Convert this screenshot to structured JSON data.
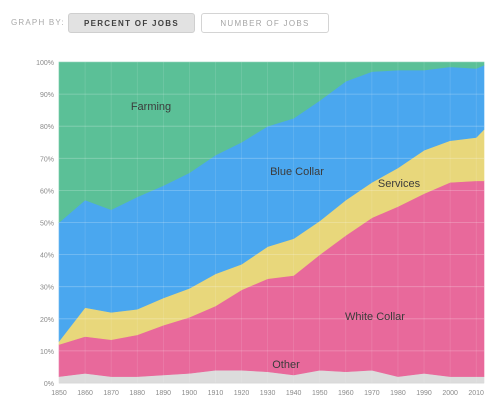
{
  "header": {
    "graph_by_label": "GRAPH BY:",
    "tabs": [
      {
        "label": "PERCENT OF JOBS",
        "active": true
      },
      {
        "label": "NUMBER OF JOBS",
        "active": false
      }
    ]
  },
  "chart_data": {
    "type": "area",
    "stacked": true,
    "x": [
      1850,
      1860,
      1870,
      1880,
      1890,
      1900,
      1910,
      1920,
      1930,
      1940,
      1950,
      1960,
      1970,
      1980,
      1990,
      2000,
      2010,
      2013
    ],
    "x_ticks": [
      "1850",
      "1860",
      "1870",
      "1880",
      "1890",
      "1900",
      "1910",
      "1920",
      "1930",
      "1940",
      "1950",
      "1960",
      "1970",
      "1980",
      "1990",
      "2000",
      "2010"
    ],
    "y_ticks": [
      "0%",
      "10%",
      "20%",
      "30%",
      "40%",
      "50%",
      "60%",
      "70%",
      "80%",
      "90%",
      "100%"
    ],
    "ylim": [
      0,
      100
    ],
    "series": [
      {
        "name": "Other",
        "color": "#dcdcdc",
        "values": [
          2,
          3,
          2,
          2,
          2.5,
          3,
          4,
          4,
          3.5,
          2.5,
          4,
          3.5,
          4,
          2,
          3,
          2,
          2,
          2
        ]
      },
      {
        "name": "White Collar",
        "color": "#e8699b",
        "values": [
          10,
          11.5,
          11.5,
          13,
          15.5,
          17.5,
          20,
          25,
          29,
          31,
          36,
          42.5,
          47.5,
          53,
          56,
          60.5,
          61,
          61
        ]
      },
      {
        "name": "Services",
        "color": "#e8d77b",
        "values": [
          1,
          9,
          8.5,
          8,
          8.5,
          9,
          10,
          8,
          10,
          11.5,
          10.5,
          11,
          11,
          12,
          13.5,
          13,
          13.5,
          16
        ]
      },
      {
        "name": "Blue Collar",
        "color": "#4aa7ef",
        "values": [
          37,
          33.5,
          32,
          35,
          35,
          36,
          37,
          38,
          37.5,
          37.5,
          37.5,
          37,
          34.5,
          30.5,
          25,
          23,
          21.5,
          20
        ]
      },
      {
        "name": "Farming",
        "color": "#5bc097",
        "values": [
          50,
          43,
          46,
          42,
          38.5,
          34.5,
          29,
          25,
          20,
          17.5,
          12,
          6,
          3,
          2.5,
          2.5,
          1.5,
          2,
          1
        ]
      }
    ],
    "annotations": [
      {
        "text": "Farming",
        "series": "Farming"
      },
      {
        "text": "Blue Collar",
        "series": "Blue Collar"
      },
      {
        "text": "Services",
        "series": "Services"
      },
      {
        "text": "White Collar",
        "series": "White Collar"
      },
      {
        "text": "Other",
        "series": "Other"
      }
    ],
    "grid": true
  }
}
